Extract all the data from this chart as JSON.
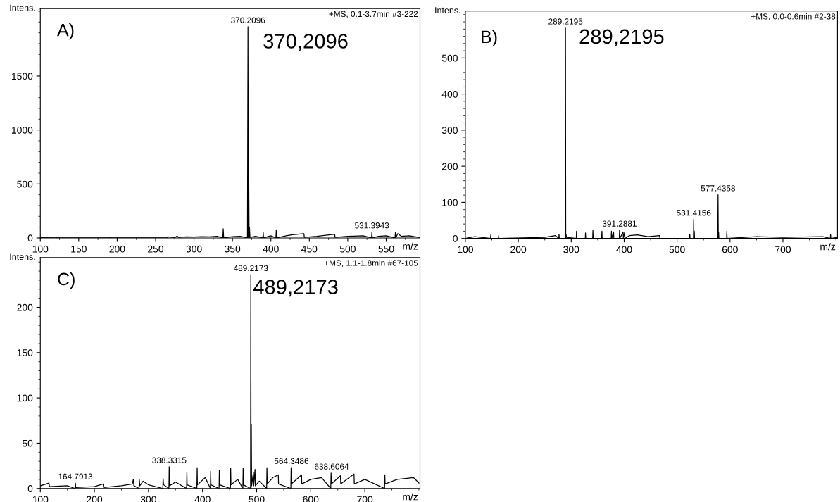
{
  "chart_data": [
    {
      "type": "line",
      "subtitle": "+MS, 0.1-3.7min #3-222",
      "xlabel": "m/z",
      "ylabel": "Intens.",
      "xlim": [
        100,
        594
      ],
      "xticks": [
        100,
        150,
        200,
        250,
        300,
        350,
        400,
        450,
        500,
        550
      ],
      "ylim": [
        0,
        2125
      ],
      "yticks": [
        0,
        500,
        1000,
        1500
      ],
      "series": [
        {
          "color": "#000000",
          "x": [
            100,
            120,
            121,
            122,
            190,
            191,
            192,
            265,
            266,
            275,
            278,
            280,
            290,
            300,
            310,
            320,
            330,
            337.5,
            338,
            338.6,
            350,
            360,
            369.5,
            370.2,
            370.7,
            371.2,
            371.7,
            372.2,
            372.8,
            380,
            389.5,
            390,
            390.5,
            400,
            406.5,
            407,
            407.5,
            420,
            428,
            443,
            443.5,
            460,
            483,
            483.5,
            500,
            520,
            531,
            531.4,
            531.9,
            540,
            550,
            561.5,
            562,
            562.5,
            565,
            570,
            580,
            593
          ],
          "values": [
            3,
            0,
            5,
            0,
            0,
            8,
            0,
            0,
            10,
            3,
            18,
            5,
            10,
            8,
            12,
            10,
            15,
            0,
            85,
            0,
            12,
            15,
            0,
            1957,
            0,
            590,
            0,
            95,
            5,
            15,
            0,
            50,
            0,
            20,
            0,
            75,
            0,
            20,
            30,
            40,
            5,
            15,
            35,
            5,
            15,
            20,
            0,
            55,
            0,
            15,
            20,
            0,
            50,
            0,
            40,
            15,
            20,
            5
          ]
        }
      ],
      "annotations": [
        {
          "text": "370.2096",
          "x": 370.2096,
          "y": 1957
        },
        {
          "text": "531.3943",
          "x": 531.3943,
          "y": 55
        },
        "A)",
        "370,2096"
      ],
      "marker": "none",
      "line_style": "solid",
      "grid": false
    },
    {
      "type": "line",
      "subtitle": "+MS, 0.0-0.6min #2-38",
      "xlabel": "m/z",
      "ylabel": "Intens.",
      "xlim": [
        100,
        803
      ],
      "xticks": [
        100,
        200,
        300,
        400,
        500,
        600,
        700
      ],
      "ylim": [
        0,
        630
      ],
      "yticks": [
        0,
        100,
        200,
        300,
        400,
        500
      ],
      "series": [
        {
          "color": "#000000",
          "x": [
            100,
            118,
            147.5,
            148,
            148.5,
            162.5,
            163,
            163.5,
            250,
            270,
            276.5,
            277,
            277.5,
            288.7,
            289.2,
            289.7,
            290.3,
            291,
            309.5,
            310,
            310.5,
            326.5,
            327,
            327.5,
            340.5,
            341,
            341.5,
            357.5,
            358,
            358.5,
            375.5,
            376,
            376.5,
            380,
            380.5,
            390.8,
            391.3,
            391.8,
            398,
            398.5,
            401,
            401.5,
            410,
            425,
            445,
            467,
            467.5,
            523.5,
            524,
            524.5,
            530.9,
            531.4,
            531.9,
            532.5,
            533,
            576.9,
            577.4,
            577.9,
            578.5,
            579,
            593.5,
            594,
            594.5,
            650,
            700,
            775,
            789.5,
            790,
            790.5,
            803
          ],
          "values": [
            0,
            5,
            0,
            10,
            0,
            0,
            8,
            0,
            3,
            8,
            0,
            12,
            0,
            0,
            583,
            0,
            12,
            3,
            0,
            20,
            0,
            0,
            15,
            0,
            0,
            22,
            0,
            0,
            20,
            0,
            0,
            20,
            0,
            18,
            0,
            0,
            23,
            0,
            18,
            0,
            18,
            0,
            8,
            10,
            5,
            8,
            0,
            0,
            12,
            0,
            0,
            53,
            0,
            20,
            0,
            0,
            121,
            0,
            18,
            0,
            0,
            20,
            0,
            5,
            3,
            5,
            0,
            12,
            0,
            3
          ]
        }
      ],
      "annotations": [
        {
          "text": "289.2195",
          "x": 289.2195,
          "y": 583
        },
        {
          "text": "391.2881",
          "x": 391.2881,
          "y": 23
        },
        {
          "text": "531.4156",
          "x": 531.4156,
          "y": 53
        },
        {
          "text": "577.4358",
          "x": 577.4358,
          "y": 121
        },
        "B)",
        "289,2195"
      ],
      "marker": "none",
      "line_style": "solid",
      "grid": false
    },
    {
      "type": "line",
      "subtitle": "+MS, 1.1-1.8min #67-105",
      "xlabel": "m/z",
      "ylabel": "Intens.",
      "xlim": [
        100,
        802
      ],
      "xticks": [
        100,
        200,
        300,
        400,
        500,
        600,
        700
      ],
      "ylim": [
        0,
        255
      ],
      "yticks": [
        0,
        50,
        100,
        150,
        200
      ],
      "series": [
        {
          "color": "#000000",
          "x": [
            100,
            116,
            117,
            150,
            164,
            164.8,
            165.5,
            200,
            216,
            217,
            250,
            270,
            272,
            273,
            282.5,
            283,
            284,
            290,
            300,
            326.5,
            327,
            328,
            337.8,
            338.3,
            338.8,
            350,
            370.5,
            371,
            371.5,
            389.5,
            390,
            390.5,
            405,
            414.5,
            415,
            415.5,
            430.5,
            431,
            431.5,
            451.5,
            452,
            452.5,
            465,
            474.5,
            475,
            475.5,
            488.7,
            489.2,
            489.7,
            490.2,
            490.7,
            494,
            494.5,
            497,
            497.5,
            505,
            518.5,
            519,
            519.5,
            530,
            540,
            540.5,
            563.2,
            563.7,
            564.3,
            583,
            583.5,
            600,
            620,
            637,
            637.6,
            638.2,
            655,
            655.5,
            680,
            680.5,
            700,
            736.5,
            737,
            737.5,
            760,
            790,
            800
          ],
          "values": [
            3,
            6,
            2,
            3,
            0,
            6,
            1,
            2,
            5,
            1,
            3,
            5,
            10,
            3,
            0,
            10,
            3,
            8,
            4,
            0,
            11,
            4,
            0,
            24,
            3,
            7,
            0,
            18,
            4,
            0,
            23,
            4,
            12,
            0,
            19,
            4,
            0,
            20,
            4,
            0,
            22,
            4,
            10,
            0,
            22,
            4,
            0,
            236,
            0,
            71,
            3,
            18,
            3,
            21,
            3,
            8,
            0,
            23,
            5,
            12,
            15,
            5,
            0,
            23,
            5,
            15,
            5,
            10,
            12,
            0,
            17,
            5,
            14,
            5,
            16,
            5,
            10,
            0,
            15,
            5,
            10,
            12,
            6
          ]
        }
      ],
      "annotations": [
        {
          "text": "489.2173",
          "x": 489.2173,
          "y": 236
        },
        {
          "text": "164.7913",
          "x": 164.7913,
          "y": 6
        },
        {
          "text": "338.3315",
          "x": 338.3315,
          "y": 24
        },
        {
          "text": "564.3486",
          "x": 564.3486,
          "y": 23
        },
        {
          "text": "638.6064",
          "x": 638.6064,
          "y": 17
        },
        "C)",
        "489,2173"
      ],
      "marker": "none",
      "line_style": "solid",
      "grid": false
    }
  ]
}
